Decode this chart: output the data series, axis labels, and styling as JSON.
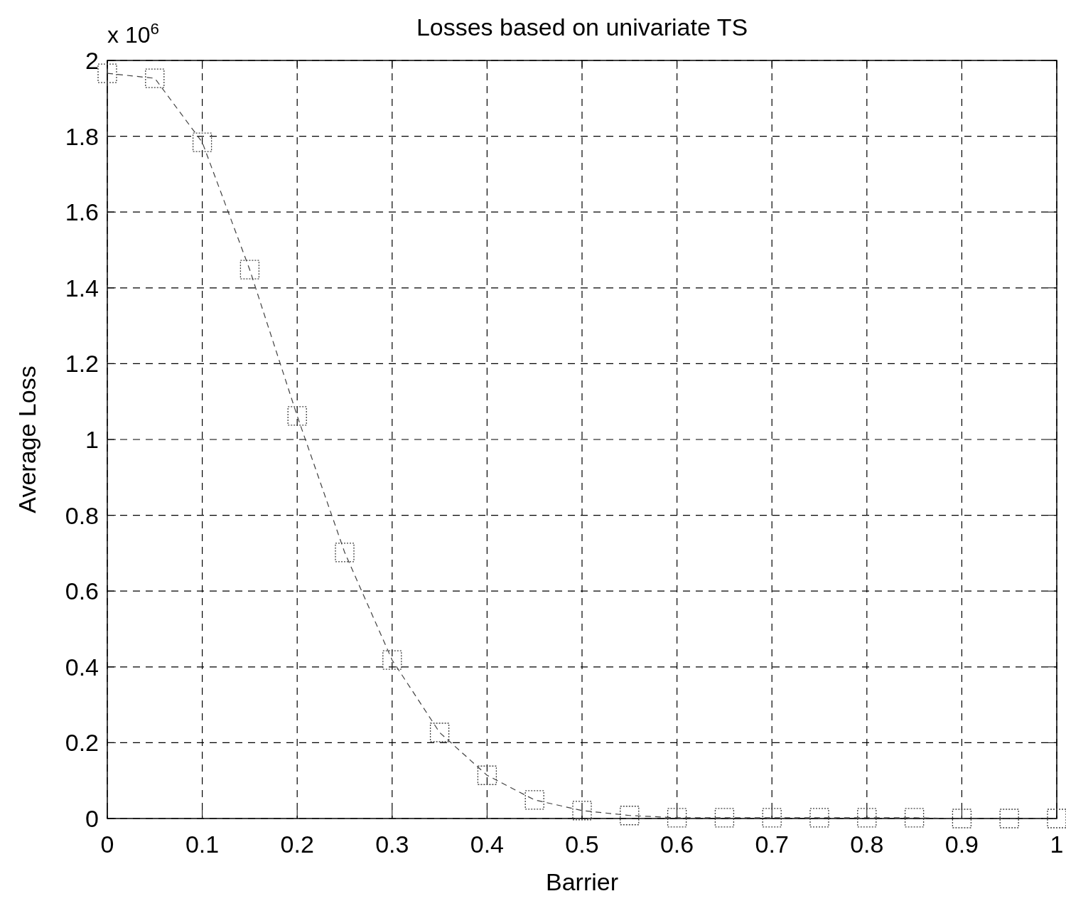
{
  "chart_data": {
    "type": "line",
    "title": "Losses based on univariate TS",
    "xlabel": "Barrier",
    "ylabel": "Average Loss",
    "annotations": [
      "x 10$^{6}$"
    ],
    "x": [
      0,
      0.05,
      0.1,
      0.15,
      0.2,
      0.25,
      0.3,
      0.35,
      0.4,
      0.45,
      0.5,
      0.55,
      0.6,
      0.65,
      0.7,
      0.75,
      0.8,
      0.85,
      0.9,
      0.95,
      1
    ],
    "series": [
      {
        "color": "#404040",
        "values": [
          1.966,
          1.953,
          1.784,
          1.448,
          1.062,
          0.702,
          0.418,
          0.227,
          0.114,
          0.049,
          0.021,
          0.008,
          0.002,
          0.002,
          0.002,
          0.002,
          0.002,
          0.002,
          0.0,
          0.0,
          0.0
        ]
      }
    ],
    "xlim": [
      0,
      1
    ],
    "xticks": [
      0,
      0.1,
      0.2,
      0.3,
      0.4,
      0.5,
      0.6,
      0.7,
      0.8,
      0.9,
      1
    ],
    "ylim": [
      0,
      2
    ],
    "yticks": [
      0,
      0.2,
      0.4,
      0.6,
      0.8,
      1,
      1.2,
      1.4,
      1.6,
      1.8,
      2
    ],
    "grid": true,
    "marker": "square",
    "line_style": "dashed"
  }
}
